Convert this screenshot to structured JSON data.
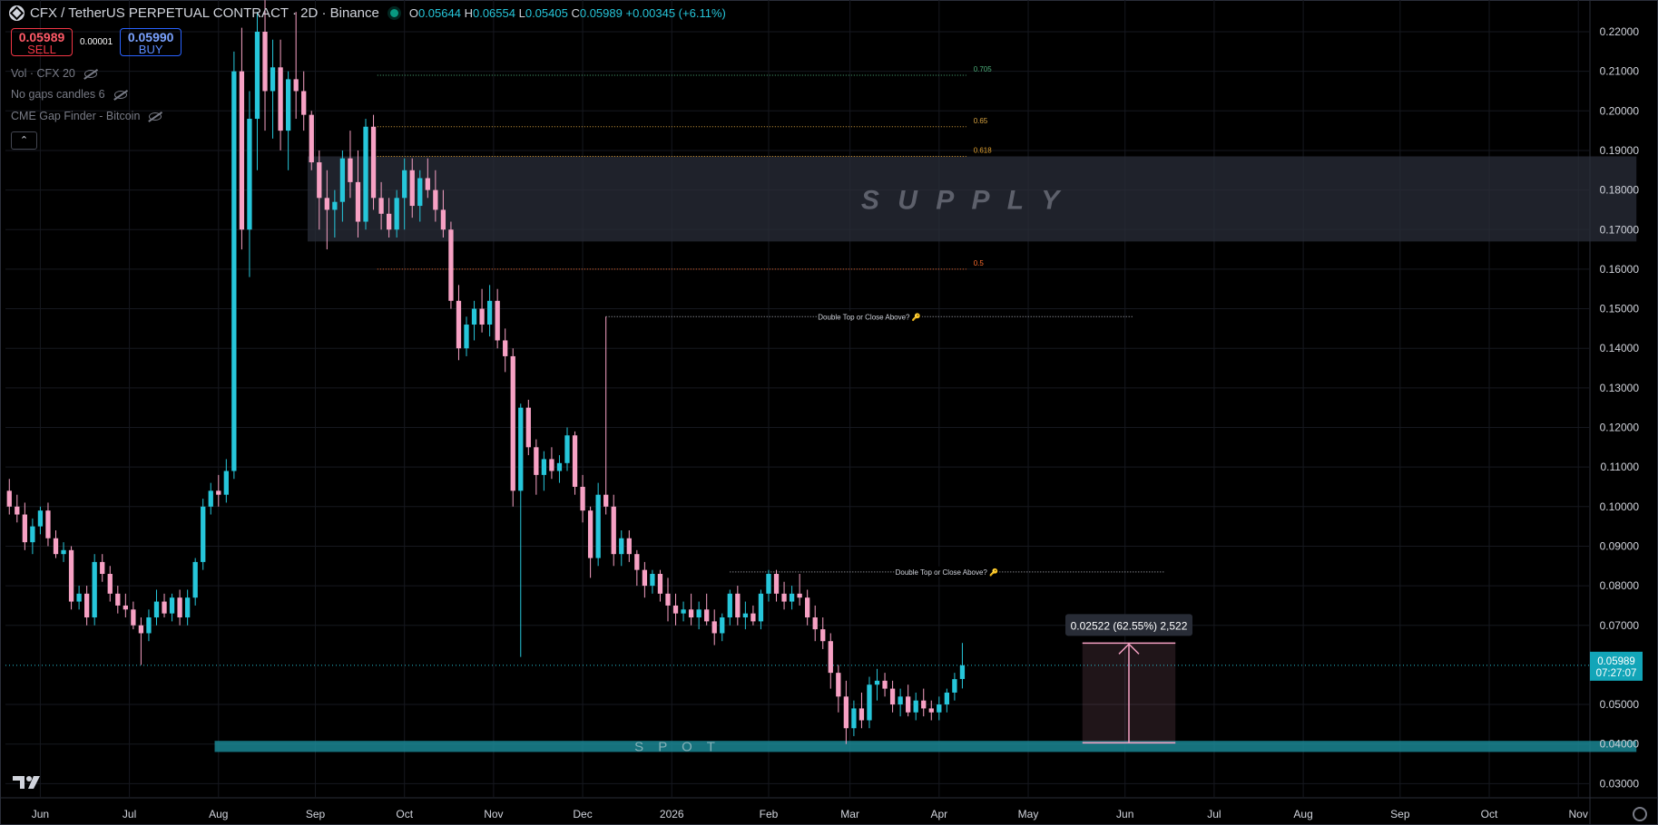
{
  "header": {
    "symbol": "CFX / TetherUS PERPETUAL CONTRACT · 2D · Binance",
    "ohlc": [
      {
        "k": "O",
        "v": "0.05644"
      },
      {
        "k": "H",
        "v": "0.06554"
      },
      {
        "k": "L",
        "v": "0.05405"
      },
      {
        "k": "C",
        "v": "0.05989"
      }
    ],
    "change": "+0.00345 (+6.11%)"
  },
  "trade": {
    "sell_price": "0.05989",
    "sell_label": "SELL",
    "spread": "0.00001",
    "buy_price": "0.05990",
    "buy_label": "BUY"
  },
  "indicators": [
    "Vol · CFX 20",
    "No gaps candles 6",
    "CME Gap Finder - Bitcoin"
  ],
  "collapse_glyph": "⌃",
  "colors": {
    "up": "#26c6da",
    "down": "#f7a1c4",
    "zone": "#2a2e39",
    "spot": "#1b8e9c",
    "price_label": "#12a5b8"
  },
  "chart_data": {
    "type": "candlestick",
    "title": "",
    "xlabel": "",
    "ylabel": "",
    "ylim": [
      0.025,
      0.225
    ],
    "grid": true,
    "x_tick_labels": [
      "Jun",
      "Jul",
      "Aug",
      "Sep",
      "Oct",
      "Nov",
      "Dec",
      "2026",
      "Feb",
      "Mar",
      "Apr",
      "May",
      "Jun",
      "Jul",
      "Aug",
      "Sep",
      "Oct",
      "Nov"
    ],
    "y_tick_labels": [
      "0.22000",
      "0.21000",
      "0.20000",
      "0.19000",
      "0.18000",
      "0.17000",
      "0.16000",
      "0.15000",
      "0.14000",
      "0.13000",
      "0.12000",
      "0.11000",
      "0.10000",
      "0.09000",
      "0.08000",
      "0.07000",
      "0.05000",
      "0.04000",
      "0.03000"
    ],
    "y_ticks": [
      0.22,
      0.21,
      0.2,
      0.19,
      0.18,
      0.17,
      0.16,
      0.15,
      0.14,
      0.13,
      0.12,
      0.11,
      0.1,
      0.09,
      0.08,
      0.07,
      0.05,
      0.04,
      0.03
    ],
    "x_ticks": [
      4.0,
      15.5,
      27.0,
      39.5,
      51.0,
      62.5,
      74.0,
      85.5,
      98.0,
      108.5,
      120.0,
      131.5,
      144.0,
      155.5,
      167.0,
      179.5,
      191.0,
      202.5
    ],
    "candles": [
      [
        0,
        0.104,
        0.107,
        0.098,
        0.1
      ],
      [
        1,
        0.1,
        0.103,
        0.096,
        0.098
      ],
      [
        2,
        0.098,
        0.101,
        0.089,
        0.091
      ],
      [
        3,
        0.091,
        0.097,
        0.088,
        0.095
      ],
      [
        4,
        0.095,
        0.1,
        0.093,
        0.099
      ],
      [
        5,
        0.099,
        0.101,
        0.09,
        0.092
      ],
      [
        6,
        0.092,
        0.094,
        0.087,
        0.088
      ],
      [
        7,
        0.088,
        0.091,
        0.086,
        0.089
      ],
      [
        8,
        0.089,
        0.09,
        0.074,
        0.076
      ],
      [
        9,
        0.076,
        0.08,
        0.074,
        0.078
      ],
      [
        10,
        0.078,
        0.08,
        0.07,
        0.072
      ],
      [
        11,
        0.072,
        0.088,
        0.07,
        0.086
      ],
      [
        12,
        0.086,
        0.088,
        0.081,
        0.083
      ],
      [
        13,
        0.083,
        0.085,
        0.076,
        0.078
      ],
      [
        14,
        0.078,
        0.08,
        0.073,
        0.075
      ],
      [
        15,
        0.075,
        0.078,
        0.072,
        0.074
      ],
      [
        16,
        0.074,
        0.076,
        0.069,
        0.07
      ],
      [
        17,
        0.07,
        0.072,
        0.06,
        0.068
      ],
      [
        18,
        0.068,
        0.074,
        0.066,
        0.072
      ],
      [
        19,
        0.072,
        0.079,
        0.07,
        0.076
      ],
      [
        20,
        0.076,
        0.078,
        0.072,
        0.073
      ],
      [
        21,
        0.073,
        0.078,
        0.071,
        0.077
      ],
      [
        22,
        0.077,
        0.079,
        0.07,
        0.072
      ],
      [
        23,
        0.072,
        0.079,
        0.07,
        0.077
      ],
      [
        24,
        0.077,
        0.087,
        0.075,
        0.086
      ],
      [
        25,
        0.086,
        0.102,
        0.084,
        0.1
      ],
      [
        26,
        0.1,
        0.106,
        0.098,
        0.104
      ],
      [
        27,
        0.104,
        0.108,
        0.1,
        0.103
      ],
      [
        28,
        0.103,
        0.112,
        0.101,
        0.109
      ],
      [
        29,
        0.109,
        0.215,
        0.107,
        0.21
      ],
      [
        30,
        0.21,
        0.221,
        0.165,
        0.17
      ],
      [
        31,
        0.17,
        0.205,
        0.158,
        0.198
      ],
      [
        32,
        0.198,
        0.225,
        0.185,
        0.22
      ],
      [
        33,
        0.22,
        0.228,
        0.195,
        0.205
      ],
      [
        34,
        0.205,
        0.218,
        0.193,
        0.211
      ],
      [
        35,
        0.211,
        0.218,
        0.19,
        0.195
      ],
      [
        36,
        0.195,
        0.21,
        0.185,
        0.208
      ],
      [
        37,
        0.208,
        0.225,
        0.198,
        0.205
      ],
      [
        38,
        0.205,
        0.21,
        0.195,
        0.199
      ],
      [
        39,
        0.199,
        0.2,
        0.185,
        0.187
      ],
      [
        40,
        0.187,
        0.19,
        0.17,
        0.178
      ],
      [
        41,
        0.178,
        0.185,
        0.165,
        0.175
      ],
      [
        42,
        0.175,
        0.18,
        0.168,
        0.177
      ],
      [
        43,
        0.177,
        0.19,
        0.172,
        0.188
      ],
      [
        44,
        0.188,
        0.195,
        0.178,
        0.182
      ],
      [
        45,
        0.182,
        0.19,
        0.168,
        0.172
      ],
      [
        46,
        0.172,
        0.198,
        0.17,
        0.196
      ],
      [
        47,
        0.196,
        0.199,
        0.175,
        0.178
      ],
      [
        48,
        0.178,
        0.182,
        0.17,
        0.174
      ],
      [
        49,
        0.174,
        0.178,
        0.168,
        0.17
      ],
      [
        50,
        0.17,
        0.18,
        0.168,
        0.178
      ],
      [
        51,
        0.178,
        0.188,
        0.17,
        0.185
      ],
      [
        52,
        0.185,
        0.188,
        0.173,
        0.176
      ],
      [
        53,
        0.176,
        0.185,
        0.172,
        0.183
      ],
      [
        54,
        0.183,
        0.188,
        0.178,
        0.18
      ],
      [
        55,
        0.18,
        0.185,
        0.172,
        0.175
      ],
      [
        56,
        0.175,
        0.18,
        0.168,
        0.17
      ],
      [
        57,
        0.17,
        0.172,
        0.15,
        0.152
      ],
      [
        58,
        0.152,
        0.156,
        0.137,
        0.14
      ],
      [
        59,
        0.14,
        0.148,
        0.138,
        0.146
      ],
      [
        60,
        0.146,
        0.152,
        0.142,
        0.15
      ],
      [
        61,
        0.15,
        0.155,
        0.144,
        0.146
      ],
      [
        62,
        0.146,
        0.156,
        0.143,
        0.152
      ],
      [
        63,
        0.152,
        0.155,
        0.14,
        0.142
      ],
      [
        64,
        0.142,
        0.145,
        0.134,
        0.138
      ],
      [
        65,
        0.138,
        0.14,
        0.1,
        0.104
      ],
      [
        66,
        0.104,
        0.126,
        0.062,
        0.125
      ],
      [
        67,
        0.125,
        0.127,
        0.113,
        0.115
      ],
      [
        68,
        0.115,
        0.117,
        0.103,
        0.108
      ],
      [
        69,
        0.108,
        0.114,
        0.104,
        0.112
      ],
      [
        70,
        0.112,
        0.115,
        0.107,
        0.109
      ],
      [
        71,
        0.109,
        0.113,
        0.106,
        0.111
      ],
      [
        72,
        0.111,
        0.12,
        0.109,
        0.118
      ],
      [
        73,
        0.118,
        0.119,
        0.103,
        0.105
      ],
      [
        74,
        0.105,
        0.108,
        0.096,
        0.099
      ],
      [
        75,
        0.099,
        0.1,
        0.082,
        0.087
      ],
      [
        76,
        0.087,
        0.106,
        0.085,
        0.103
      ],
      [
        77,
        0.103,
        0.148,
        0.098,
        0.1
      ],
      [
        78,
        0.1,
        0.103,
        0.085,
        0.088
      ],
      [
        79,
        0.088,
        0.094,
        0.085,
        0.092
      ],
      [
        80,
        0.092,
        0.094,
        0.086,
        0.088
      ],
      [
        81,
        0.088,
        0.089,
        0.08,
        0.084
      ],
      [
        82,
        0.084,
        0.086,
        0.077,
        0.08
      ],
      [
        83,
        0.08,
        0.084,
        0.078,
        0.083
      ],
      [
        84,
        0.083,
        0.084,
        0.076,
        0.078
      ],
      [
        85,
        0.078,
        0.082,
        0.071,
        0.075
      ],
      [
        86,
        0.075,
        0.078,
        0.07,
        0.073
      ],
      [
        87,
        0.073,
        0.076,
        0.071,
        0.074
      ],
      [
        88,
        0.074,
        0.078,
        0.07,
        0.072
      ],
      [
        89,
        0.072,
        0.076,
        0.069,
        0.074
      ],
      [
        90,
        0.074,
        0.078,
        0.07,
        0.071
      ],
      [
        91,
        0.071,
        0.074,
        0.065,
        0.068
      ],
      [
        92,
        0.068,
        0.073,
        0.066,
        0.072
      ],
      [
        93,
        0.072,
        0.079,
        0.07,
        0.078
      ],
      [
        94,
        0.078,
        0.08,
        0.07,
        0.072
      ],
      [
        95,
        0.072,
        0.076,
        0.069,
        0.073
      ],
      [
        96,
        0.073,
        0.075,
        0.07,
        0.071
      ],
      [
        97,
        0.071,
        0.079,
        0.069,
        0.078
      ],
      [
        98,
        0.078,
        0.084,
        0.076,
        0.083
      ],
      [
        99,
        0.083,
        0.084,
        0.076,
        0.078
      ],
      [
        100,
        0.078,
        0.081,
        0.074,
        0.076
      ],
      [
        101,
        0.076,
        0.08,
        0.074,
        0.078
      ],
      [
        102,
        0.078,
        0.083,
        0.075,
        0.077
      ],
      [
        103,
        0.077,
        0.079,
        0.07,
        0.072
      ],
      [
        104,
        0.072,
        0.075,
        0.066,
        0.069
      ],
      [
        105,
        0.069,
        0.072,
        0.064,
        0.066
      ],
      [
        106,
        0.066,
        0.068,
        0.054,
        0.058
      ],
      [
        107,
        0.058,
        0.06,
        0.048,
        0.052
      ],
      [
        108,
        0.052,
        0.056,
        0.04,
        0.044
      ],
      [
        109,
        0.044,
        0.051,
        0.042,
        0.049
      ],
      [
        110,
        0.049,
        0.053,
        0.044,
        0.046
      ],
      [
        111,
        0.046,
        0.057,
        0.044,
        0.055
      ],
      [
        112,
        0.055,
        0.059,
        0.051,
        0.056
      ],
      [
        113,
        0.056,
        0.058,
        0.052,
        0.054
      ],
      [
        114,
        0.054,
        0.056,
        0.048,
        0.05
      ],
      [
        115,
        0.05,
        0.054,
        0.047,
        0.052
      ],
      [
        116,
        0.052,
        0.055,
        0.047,
        0.048
      ],
      [
        117,
        0.048,
        0.053,
        0.046,
        0.051
      ],
      [
        118,
        0.051,
        0.054,
        0.047,
        0.049
      ],
      [
        119,
        0.049,
        0.051,
        0.046,
        0.048
      ],
      [
        120,
        0.048,
        0.052,
        0.046,
        0.05
      ],
      [
        121,
        0.05,
        0.054,
        0.048,
        0.053
      ],
      [
        122,
        0.053,
        0.058,
        0.051,
        0.0564
      ],
      [
        123,
        0.05644,
        0.06554,
        0.05405,
        0.05989
      ]
    ],
    "supply_zone": {
      "label": "S U P P L Y",
      "y_top": 0.1885,
      "y_bottom": 0.167,
      "x_start": 38.5,
      "x_end": 210
    },
    "spot_zone": {
      "label": "S P O T",
      "y_top": 0.0408,
      "y_bottom": 0.038,
      "x_start": 26.5,
      "x_end": 210
    },
    "fib_levels": [
      {
        "label": "0.705",
        "y": 0.209,
        "color": "#4caf7a"
      },
      {
        "label": "0.65",
        "y": 0.196,
        "color": "#d9a441"
      },
      {
        "label": "0.618",
        "y": 0.1885,
        "color": "#e0a030"
      },
      {
        "label": "0.5",
        "y": 0.16,
        "color": "#ff6d2d"
      }
    ],
    "fib_x_range": [
      47.5,
      123.5
    ],
    "annotations": [
      {
        "text": "Double Top or Close Above? 🔑",
        "y": 0.148,
        "x_start": 77,
        "x_end": 145
      },
      {
        "text": "Double Top or Close Above? 🔑",
        "y": 0.0835,
        "x_start": 93,
        "x_end": 149
      }
    ],
    "measure": {
      "label": "0.02522 (62.55%) 2,522",
      "y_from": 0.0403,
      "y_to": 0.0655,
      "x_start": 138.5,
      "x_end": 150.5
    },
    "last_price": {
      "price": "0.05989",
      "countdown": "07:27:07",
      "y": 0.05989
    },
    "bars": {
      "x_min": -0.5,
      "x_max": 204.0
    }
  },
  "tv_logo": "17"
}
